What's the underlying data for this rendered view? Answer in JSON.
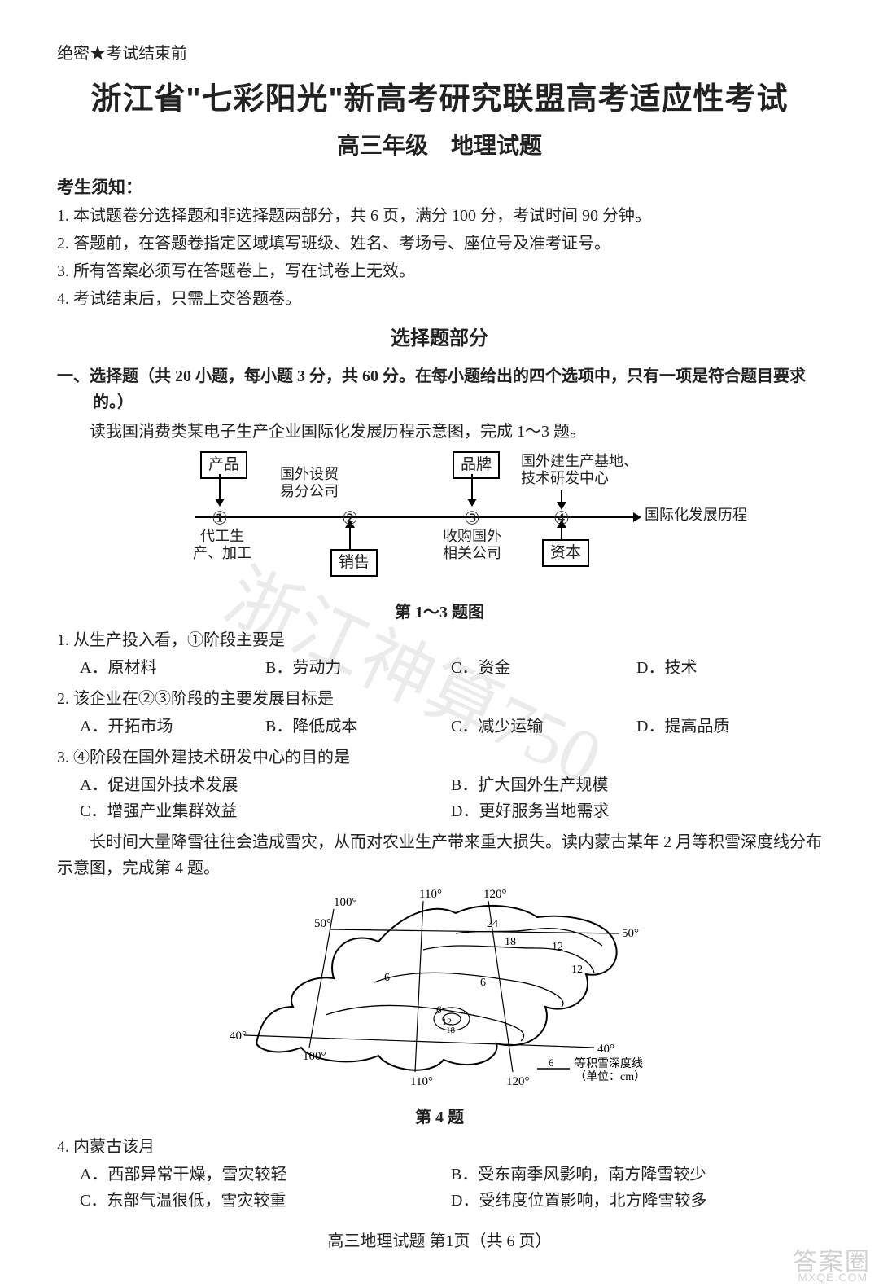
{
  "header": {
    "secret": "绝密★考试结束前",
    "title": "浙江省\"七彩阳光\"新高考研究联盟高考适应性考试",
    "subtitle": "高三年级　地理试题"
  },
  "notice": {
    "head": "考生须知：",
    "items": [
      "1. 本试题卷分选择题和非选择题两部分，共 6 页，满分 100 分，考试时间 90 分钟。",
      "2. 答题前，在答题卷指定区域填写班级、姓名、考场号、座位号及准考证号。",
      "3. 所有答案必须写在答题卷上，写在试卷上无效。",
      "4. 考试结束后，只需上交答题卷。"
    ]
  },
  "section": {
    "part_title": "选择题部分",
    "instruction": "一、选择题（共 20 小题，每小题 3 分，共 60 分。在每小题给出的四个选项中，只有一项是符合题目要求的。）",
    "intro1": "读我国消费类某电子生产企业国际化发展历程示意图，完成 1～3 题。"
  },
  "diagram": {
    "top1": "产品",
    "top2": "品牌",
    "side_r_top": "国外建生产基地、\n技术研发中心",
    "mid_top_label": "国外设贸\n易分公司",
    "nodes": {
      "c1": "①",
      "c2": "②",
      "c3": "③",
      "c4": "④"
    },
    "end_label": "国际化发展历程",
    "bot1": "代工生\n产、加工",
    "mid_bot_box": "销售",
    "bot3": "收购国外\n相关公司",
    "bot4_box": "资本",
    "caption": "第 1～3 题图"
  },
  "q1": {
    "stem": "1. 从生产投入看，①阶段主要是",
    "A": "A．原材料",
    "B": "B．劳动力",
    "C": "C．资金",
    "D": "D．技术"
  },
  "q2": {
    "stem": "2. 该企业在②③阶段的主要发展目标是",
    "A": "A．开拓市场",
    "B": "B．降低成本",
    "C": "C．减少运输",
    "D": "D．提高品质"
  },
  "q3": {
    "stem": "3. ④阶段在国外建技术研发中心的目的是",
    "A": "A．促进国外技术发展",
    "B": "B．扩大国外生产规模",
    "C": "C．增强产业集群效益",
    "D": "D．更好服务当地需求"
  },
  "intro2": "长时间大量降雪往往会造成雪灾，从而对农业生产带来重大损失。读内蒙古某年 2 月等积雪深度线分布示意图，完成第 4 题。",
  "map": {
    "caption": "第 4 题",
    "legend": "等积雪深度线\n（单位：cm）",
    "legend_sample": "6",
    "lons": {
      "l100a": "100°",
      "l100b": "100°",
      "l110a": "110°",
      "l110b": "110°",
      "l120a": "120°",
      "l120b": "120°"
    },
    "lats": {
      "l40a": "40°",
      "l40b": "40°",
      "l50a": "50°",
      "l50b": "50°"
    },
    "values": {
      "v24": "24",
      "v18": "18",
      "v12a": "12",
      "v12b": "12",
      "v6a": "6",
      "v6b": "6",
      "v6c": "6",
      "vi12": "12",
      "vi18": "18"
    }
  },
  "q4": {
    "stem": "4. 内蒙古该月",
    "A": "A．西部异常干燥，雪灾较轻",
    "B": "B．受东南季风影响，南方降雪较少",
    "C": "C．东部气温很低，雪灾较重",
    "D": "D．受纬度位置影响，北方降雪较多"
  },
  "footer": "高三地理试题 第1页（共 6 页）",
  "watermarks": {
    "diag": "浙江神算750",
    "corner": "答案圈",
    "url": "MXQE.COM"
  }
}
